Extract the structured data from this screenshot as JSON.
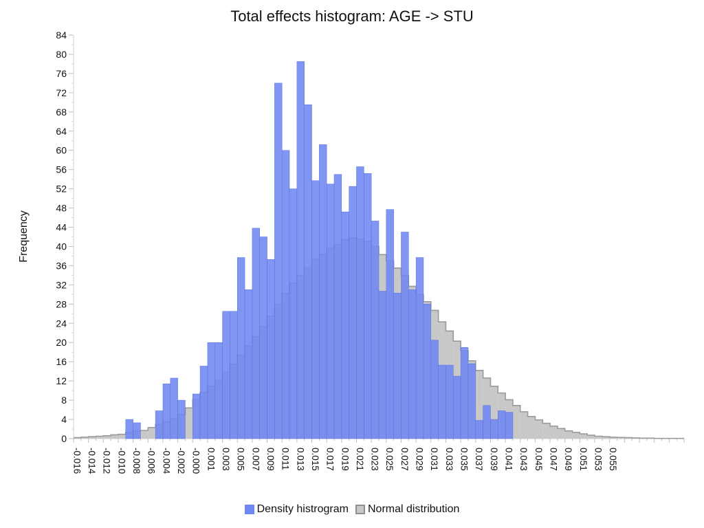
{
  "chart_data": {
    "type": "bar",
    "title": "Total effects histogram: AGE -> STU",
    "xlabel": "",
    "ylabel": "Frequency",
    "ylim": [
      0,
      84
    ],
    "ytick_step": 4,
    "grid": false,
    "legend_position": "bottom",
    "bin_start": -0.016,
    "bin_width": 0.001,
    "x_tick_labels": [
      "-0.016",
      "-0.014",
      "-0.012",
      "-0.010",
      "-0.008",
      "-0.006",
      "-0.004",
      "-0.002",
      "-0.000",
      "0.001",
      "0.003",
      "0.005",
      "0.007",
      "0.009",
      "0.011",
      "0.013",
      "0.015",
      "0.017",
      "0.019",
      "0.021",
      "0.023",
      "0.025",
      "0.027",
      "0.029",
      "0.031",
      "0.033",
      "0.035",
      "0.037",
      "0.039",
      "0.041",
      "0.043",
      "0.045",
      "0.047",
      "0.049",
      "0.051",
      "0.053",
      "0.055"
    ],
    "series": [
      {
        "name": "Density histrogram",
        "color": "#6f87f0",
        "start_index": 7,
        "values": [
          4,
          3.3,
          0,
          0,
          5.8,
          11.4,
          12.6,
          8,
          0,
          9.3,
          15.1,
          20,
          20,
          26.5,
          26.5,
          37.7,
          31,
          43.8,
          42,
          37.3,
          74,
          60,
          52,
          78.5,
          69.5,
          53.7,
          61.2,
          53,
          55,
          47.2,
          52.5,
          56.6,
          55.2,
          45.3,
          30.7,
          47.7,
          30.3,
          43,
          31,
          37.7,
          28,
          20.5,
          15.3,
          15.3,
          13,
          19,
          15.6,
          3.8,
          6.9,
          4,
          5.8,
          5.5
        ]
      },
      {
        "name": "Normal distribution",
        "color": "#c8c8c8",
        "start_index": 0,
        "values": [
          0.2,
          0.3,
          0.4,
          0.5,
          0.6,
          0.8,
          0.9,
          1.3,
          1.6,
          1.7,
          2.3,
          2.9,
          3.5,
          4.1,
          5,
          6.4,
          8.1,
          9.6,
          10.9,
          12.1,
          13.8,
          15.5,
          17.4,
          19.3,
          21.2,
          23.3,
          25.5,
          27.9,
          30.2,
          32.4,
          34,
          35.5,
          37.3,
          38.3,
          39.6,
          40.4,
          41.4,
          41.8,
          41.5,
          41,
          40,
          38.3,
          37,
          35.5,
          34,
          31.7,
          30,
          28.5,
          26.7,
          24.3,
          22.4,
          20.3,
          18.3,
          16.2,
          14.2,
          12.6,
          10.9,
          9.5,
          8.1,
          6.9,
          5.6,
          4.6,
          3.9,
          3.2,
          2.6,
          2.1,
          1.6,
          1.3,
          1,
          0.7,
          0.5,
          0.4,
          0.3,
          0.25,
          0.2,
          0.15,
          0.1,
          0.1,
          0.05,
          0.05,
          0.05,
          0.05
        ]
      }
    ]
  }
}
